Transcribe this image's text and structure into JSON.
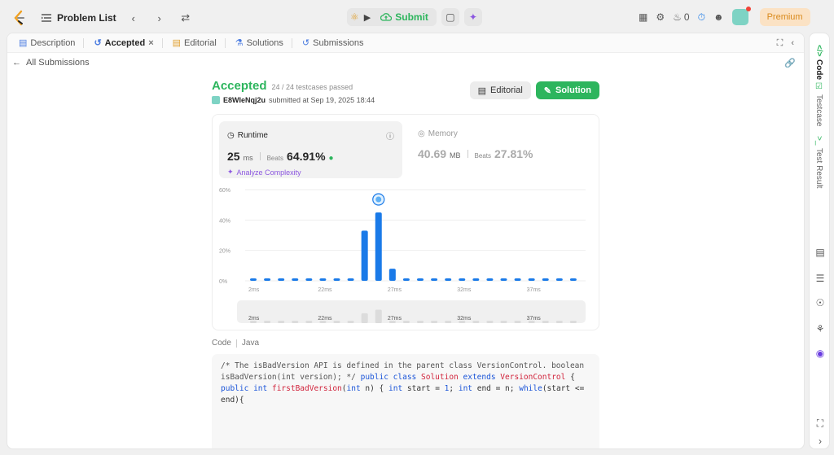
{
  "topbar": {
    "problem_list": "Problem List",
    "submit": "Submit",
    "streak": "0",
    "premium": "Premium"
  },
  "tabs": [
    {
      "label": "Description"
    },
    {
      "label": "Accepted"
    },
    {
      "label": "Editorial"
    },
    {
      "label": "Solutions"
    },
    {
      "label": "Submissions"
    }
  ],
  "back_label": "All Submissions",
  "result": {
    "status": "Accepted",
    "testcases": "24 / 24 testcases passed",
    "user": "E8WIeNqj2u",
    "submitted": "submitted at Sep 19, 2025 18:44",
    "editorial_btn": "Editorial",
    "solution_btn": "Solution"
  },
  "runtime": {
    "title": "Runtime",
    "value": "25",
    "unit": "ms",
    "beats_label": "Beats",
    "beats": "64.91%",
    "analyze": "Analyze Complexity"
  },
  "memory": {
    "title": "Memory",
    "value": "40.69",
    "unit": "MB",
    "beats_label": "Beats",
    "beats": "27.81%"
  },
  "chart_data": {
    "type": "bar",
    "ylim": [
      0,
      60
    ],
    "yticks": [
      "60%",
      "40%",
      "20%",
      "0%"
    ],
    "xtick_labels": [
      "2ms",
      "22ms",
      "27ms",
      "32ms",
      "37ms"
    ],
    "values": [
      1,
      1,
      1,
      1,
      1,
      1,
      1,
      1,
      33,
      45,
      8,
      1,
      1,
      1,
      1,
      1,
      1,
      1,
      1,
      1,
      1,
      1,
      1,
      1
    ],
    "highlight_index": 9,
    "grid": true
  },
  "code": {
    "label": "Code",
    "lang": "Java"
  },
  "right_tabs": [
    "Code",
    "Testcase",
    "Test Result"
  ],
  "colors": {
    "accent": "#2db55d",
    "bar": "#1a7ae8",
    "premium": "#d98a1c"
  }
}
